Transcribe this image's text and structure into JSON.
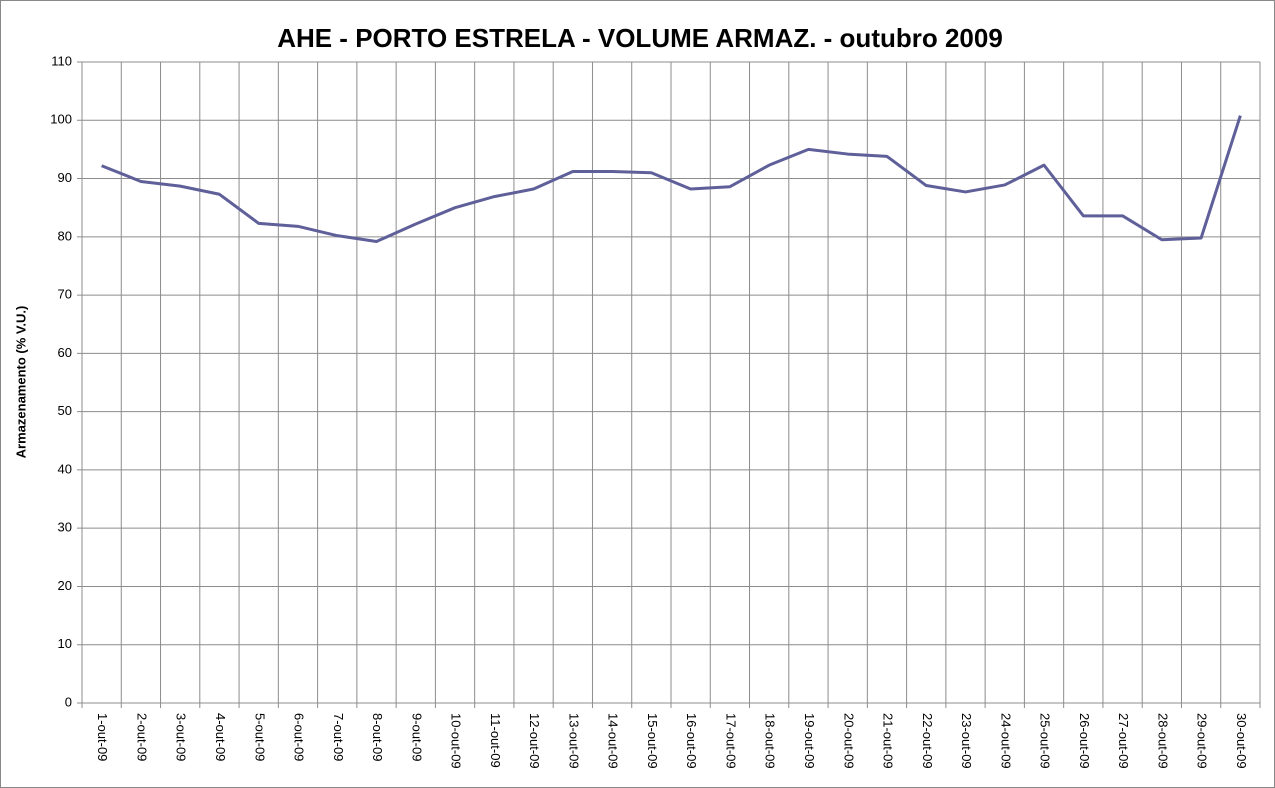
{
  "chart_data": {
    "type": "line",
    "title": "AHE - PORTO ESTRELA - VOLUME ARMAZ. - outubro 2009",
    "y_label": "Armazenamento (% V.U.)",
    "categories": [
      "1-out-09",
      "2-out-09",
      "3-out-09",
      "4-out-09",
      "5-out-09",
      "6-out-09",
      "7-out-09",
      "8-out-09",
      "9-out-09",
      "10-out-09",
      "11-out-09",
      "12-out-09",
      "13-out-09",
      "14-out-09",
      "15-out-09",
      "16-out-09",
      "17-out-09",
      "18-out-09",
      "19-out-09",
      "20-out-09",
      "21-out-09",
      "22-out-09",
      "23-out-09",
      "24-out-09",
      "25-out-09",
      "26-out-09",
      "27-out-09",
      "28-out-09",
      "29-out-09",
      "30-out-09"
    ],
    "series": [
      {
        "name": "Armazenamento",
        "color": "#5f5f99",
        "values": [
          92.2,
          89.5,
          88.7,
          87.3,
          82.3,
          81.8,
          80.2,
          79.2,
          82.2,
          85.0,
          86.9,
          88.2,
          91.2,
          91.2,
          91.0,
          88.2,
          88.6,
          92.3,
          95.0,
          94.2,
          93.8,
          88.8,
          87.7,
          88.9,
          92.3,
          83.6,
          83.6,
          79.5,
          79.8,
          100.8
        ]
      }
    ],
    "ylim": [
      0,
      110
    ],
    "yticks": [
      0,
      10,
      20,
      30,
      40,
      50,
      60,
      70,
      80,
      90,
      100,
      110
    ],
    "grid": true
  }
}
